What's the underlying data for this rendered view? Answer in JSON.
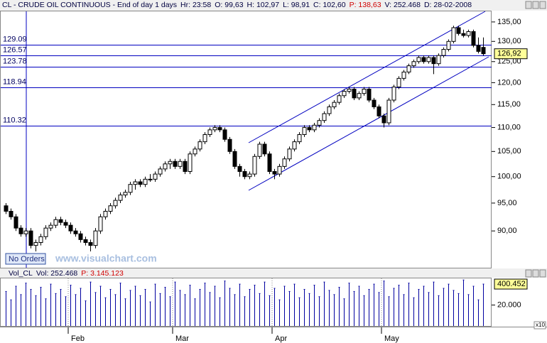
{
  "chart_data": {
    "type": "candlestick",
    "header": [
      "CL - CRUDE OIL CONTINUOUS - End of day 1 days",
      "Hr: 23:58",
      "O: 99,63",
      "H: 102,97",
      "L: 98,91",
      "C: 102,60",
      "P: 138,63",
      "V: 252.468",
      "D: 28-02-2008"
    ],
    "header_red": 6,
    "log_scale": true,
    "ylim": [
      83.8,
      137.8
    ],
    "yticks": [
      {
        "value": 135,
        "label": "135,00"
      },
      {
        "value": 130,
        "label": "130,00"
      },
      {
        "value": 125,
        "label": "125,00"
      },
      {
        "value": 120,
        "label": "120,00"
      },
      {
        "value": 115,
        "label": "115,00"
      },
      {
        "value": 110,
        "label": "110,00"
      },
      {
        "value": 105,
        "label": "105,00"
      },
      {
        "value": 100,
        "label": "100,00"
      },
      {
        "value": 95,
        "label": "95,00"
      },
      {
        "value": 90,
        "label": "90,00"
      }
    ],
    "levels": [
      129.09,
      126.57,
      123.78,
      118.94,
      110.32
    ],
    "last": {
      "value": 126.92,
      "label": "126,92"
    },
    "months": [
      {
        "label": "Feb",
        "index": 13
      },
      {
        "label": "Mar",
        "index": 34
      },
      {
        "label": "Apr",
        "index": 54
      },
      {
        "label": "May",
        "index": 76
      }
    ],
    "candles": [
      [
        94.5,
        95,
        93,
        93.5
      ],
      [
        93.5,
        94,
        92,
        92.5
      ],
      [
        92.5,
        93,
        90,
        90.5
      ],
      [
        90.5,
        91,
        89,
        89.5
      ],
      [
        89.5,
        90.5,
        89,
        90
      ],
      [
        90,
        90.5,
        87,
        87.5
      ],
      [
        87.5,
        88.5,
        86.5,
        88
      ],
      [
        88,
        89.5,
        87.5,
        89
      ],
      [
        89,
        91,
        88.5,
        90.5
      ],
      [
        90.5,
        91.5,
        90,
        91
      ],
      [
        91,
        92.5,
        90.5,
        92
      ],
      [
        92,
        92.5,
        91,
        91.5
      ],
      [
        91.5,
        92,
        90.5,
        91
      ],
      [
        91,
        91.5,
        89.5,
        90
      ],
      [
        90,
        90.5,
        89,
        89.5
      ],
      [
        89.5,
        90,
        88,
        88.5
      ],
      [
        88.5,
        89,
        87.5,
        88
      ],
      [
        88,
        88.5,
        86.5,
        87.5
      ],
      [
        87.5,
        90.5,
        87,
        90
      ],
      [
        90,
        93,
        89.5,
        92.5
      ],
      [
        92.5,
        94,
        92,
        93.5
      ],
      [
        93.5,
        95,
        93,
        94.5
      ],
      [
        94.5,
        96,
        94,
        95.5
      ],
      [
        95.5,
        97,
        95,
        96.5
      ],
      [
        96.5,
        97.5,
        96,
        97
      ],
      [
        97,
        99,
        96.5,
        98.5
      ],
      [
        98.5,
        99.5,
        97.5,
        99
      ],
      [
        99,
        99.5,
        98,
        98.5
      ],
      [
        98.5,
        100,
        98,
        99.5
      ],
      [
        99.5,
        100.5,
        99,
        99.5
      ],
      [
        99.5,
        101,
        99,
        100.5
      ],
      [
        100.5,
        102,
        100,
        101.5
      ],
      [
        101.5,
        103,
        101,
        102.5
      ],
      [
        102.5,
        103.5,
        101.5,
        103
      ],
      [
        103,
        103.5,
        101.5,
        102
      ],
      [
        102,
        103.5,
        101.5,
        103
      ],
      [
        103,
        103.5,
        100.5,
        101
      ],
      [
        101,
        105,
        100.5,
        104.5
      ],
      [
        104.5,
        106,
        104,
        105.5
      ],
      [
        105.5,
        107.5,
        105,
        107
      ],
      [
        107,
        109,
        106.5,
        108.5
      ],
      [
        108.5,
        110,
        108,
        109.5
      ],
      [
        109.5,
        110.5,
        109,
        110
      ],
      [
        110,
        110.5,
        109,
        109.5
      ],
      [
        109.5,
        110,
        107,
        107.5
      ],
      [
        107.5,
        108,
        104.5,
        105
      ],
      [
        105,
        105.5,
        101.5,
        102
      ],
      [
        102,
        102.5,
        100,
        101
      ],
      [
        101,
        101.5,
        99.5,
        100
      ],
      [
        100,
        101,
        99.5,
        100.5
      ],
      [
        100.5,
        104.5,
        100,
        104
      ],
      [
        104,
        107,
        103.5,
        106.5
      ],
      [
        106.5,
        107,
        104,
        104.5
      ],
      [
        104.5,
        105,
        100.5,
        101
      ],
      [
        101,
        101.5,
        99.5,
        100.5
      ],
      [
        100.5,
        102.5,
        100,
        102
      ],
      [
        102,
        104,
        101.5,
        103.5
      ],
      [
        103.5,
        106,
        103,
        105.5
      ],
      [
        105.5,
        107.5,
        105,
        107
      ],
      [
        107,
        109,
        106.5,
        108.5
      ],
      [
        108.5,
        110.5,
        108,
        110
      ],
      [
        110,
        110.5,
        109,
        109.5
      ],
      [
        109.5,
        111,
        109,
        110.5
      ],
      [
        110.5,
        112,
        110,
        111.5
      ],
      [
        111.5,
        113.5,
        111,
        113
      ],
      [
        113,
        115,
        112.5,
        114.5
      ],
      [
        114.5,
        116,
        114,
        115.5
      ],
      [
        115.5,
        117.5,
        115,
        117
      ],
      [
        117,
        118.5,
        116.5,
        118
      ],
      [
        118,
        119,
        117.5,
        118.5
      ],
      [
        118.5,
        119,
        116,
        116.5
      ],
      [
        116.5,
        118,
        116,
        117.5
      ],
      [
        117.5,
        119,
        117,
        118.5
      ],
      [
        118.5,
        119,
        115.5,
        116
      ],
      [
        116,
        116.5,
        114,
        114.5
      ],
      [
        114.5,
        115,
        112,
        112.5
      ],
      [
        112.5,
        113,
        110,
        111
      ],
      [
        111,
        116.5,
        110.5,
        116
      ],
      [
        116,
        119.5,
        115.5,
        119
      ],
      [
        119,
        121.5,
        118.5,
        121
      ],
      [
        121,
        123,
        120.5,
        122.5
      ],
      [
        122.5,
        124.5,
        122,
        124
      ],
      [
        124,
        125.5,
        123.5,
        125
      ],
      [
        125,
        126.5,
        124.5,
        126
      ],
      [
        126,
        126.5,
        124.5,
        125
      ],
      [
        125,
        126.5,
        124.5,
        126
      ],
      [
        126,
        126.5,
        122,
        124.5
      ],
      [
        124.5,
        127,
        124,
        126.5
      ],
      [
        126.5,
        128.5,
        126,
        128
      ],
      [
        128,
        130.5,
        127.5,
        130
      ],
      [
        130,
        134,
        129.5,
        133.5
      ],
      [
        133.5,
        134,
        131.5,
        132
      ],
      [
        132,
        133,
        131,
        131.5
      ],
      [
        131.5,
        133,
        131,
        132.5
      ],
      [
        132.5,
        133,
        128.5,
        129
      ],
      [
        129,
        131,
        127,
        127.5
      ],
      [
        128.5,
        131,
        126.5,
        126.92
      ]
    ],
    "no_orders": "No Orders",
    "watermark": "www.visualchart.com",
    "volume": {
      "header": [
        "Vol_CL",
        "Vol: 252.468",
        "P: 3.145.123"
      ],
      "header_red": 2,
      "ylim": [
        0,
        455000
      ],
      "yticks": [
        {
          "value": 200000,
          "label": "20.000"
        }
      ],
      "last": {
        "value": 400452,
        "label": "400.452"
      },
      "multiplier": "x10",
      "values": [
        330000,
        250000,
        380000,
        300000,
        410000,
        350000,
        290000,
        370000,
        260000,
        400000,
        310000,
        350000,
        280000,
        390000,
        300000,
        360000,
        240000,
        420000,
        320000,
        380000,
        270000,
        350000,
        300000,
        410000,
        260000,
        340000,
        380000,
        290000,
        350000,
        230000,
        400000,
        310000,
        370000,
        280000,
        420000,
        340000,
        300000,
        390000,
        260000,
        350000,
        410000,
        320000,
        380000,
        270000,
        430000,
        360000,
        300000,
        400000,
        280000,
        350000,
        390000,
        310000,
        420000,
        290000,
        360000,
        250000,
        380000,
        330000,
        400000,
        270000,
        350000,
        310000,
        390000,
        280000,
        420000,
        340000,
        300000,
        370000,
        260000,
        410000,
        330000,
        380000,
        290000,
        350000,
        400000,
        320000,
        430000,
        280000,
        360000,
        390000,
        300000,
        410000,
        270000,
        350000,
        380000,
        320000,
        420000,
        290000,
        360000,
        400000,
        340000,
        310000,
        440000,
        300000,
        380000,
        250000,
        400452
      ]
    }
  }
}
